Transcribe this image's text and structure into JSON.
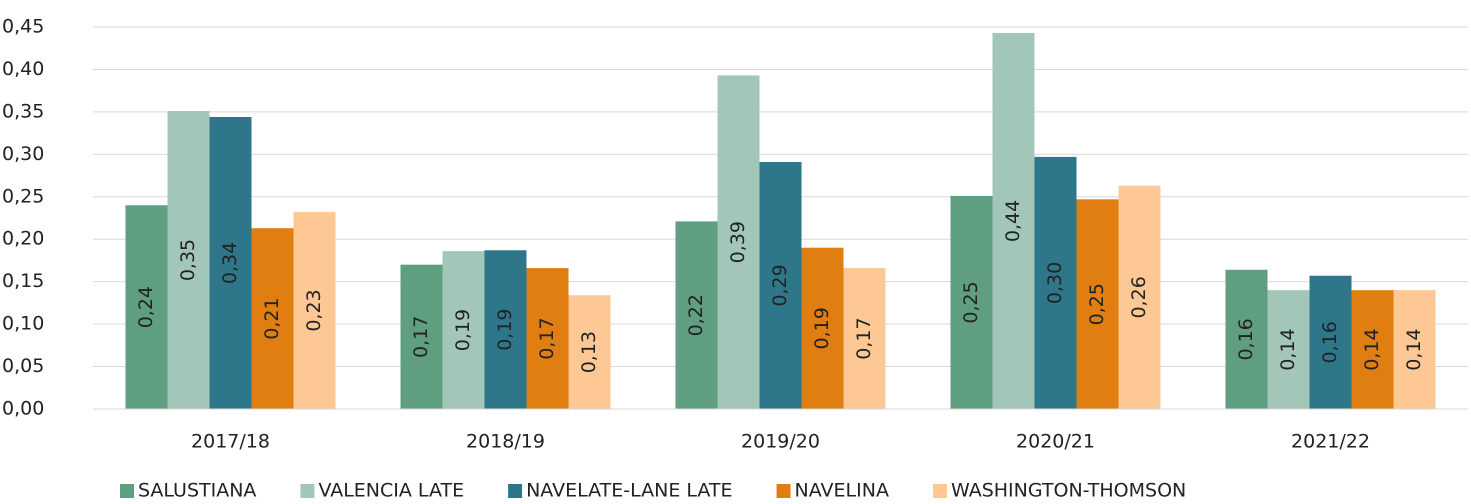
{
  "chart_data": {
    "type": "bar",
    "categories": [
      "2017/18",
      "2018/19",
      "2019/20",
      "2020/21",
      "2021/22"
    ],
    "series": [
      {
        "name": "SALUSTIANA",
        "color": "#5f9e80",
        "values": [
          0.24,
          0.17,
          0.221,
          0.251,
          0.164
        ],
        "value_labels": [
          "0,24",
          "0,17",
          "0,22",
          "0,25",
          "0,16"
        ]
      },
      {
        "name": "VALENCIA LATE",
        "color": "#a2c7b9",
        "values": [
          0.351,
          0.186,
          0.393,
          0.443,
          0.14
        ],
        "value_labels": [
          "0,35",
          "0,19",
          "0,39",
          "0,44",
          "0,14"
        ]
      },
      {
        "name": "NAVELATE-LANE LATE",
        "color": "#2e768a",
        "values": [
          0.344,
          0.187,
          0.291,
          0.297,
          0.157
        ],
        "value_labels": [
          "0,34",
          "0,19",
          "0,29",
          "0,30",
          "0,16"
        ]
      },
      {
        "name": "NAVELINA",
        "color": "#e07e12",
        "values": [
          0.213,
          0.166,
          0.19,
          0.247,
          0.14
        ],
        "value_labels": [
          "0,21",
          "0,17",
          "0,19",
          "0,25",
          "0,14"
        ]
      },
      {
        "name": "WASHINGTON-THOMSON",
        "color": "#fdc893",
        "values": [
          0.232,
          0.134,
          0.166,
          0.263,
          0.14
        ],
        "value_labels": [
          "0,23",
          "0,13",
          "0,17",
          "0,26",
          "0,14"
        ]
      }
    ],
    "ylim": [
      0,
      0.45
    ],
    "yticks": [
      {
        "value": 0,
        "label": "0,00"
      },
      {
        "value": 0.05,
        "label": "0,05"
      },
      {
        "value": 0.1,
        "label": "0,10"
      },
      {
        "value": 0.15,
        "label": "0,15"
      },
      {
        "value": 0.2,
        "label": "0,20"
      },
      {
        "value": 0.25,
        "label": "0,25"
      },
      {
        "value": 0.3,
        "label": "0,30"
      },
      {
        "value": 0.35,
        "label": "0,35"
      },
      {
        "value": 0.4,
        "label": "0,40"
      },
      {
        "value": 0.45,
        "label": "0,45"
      }
    ],
    "grid": true,
    "legend": "bottom"
  }
}
